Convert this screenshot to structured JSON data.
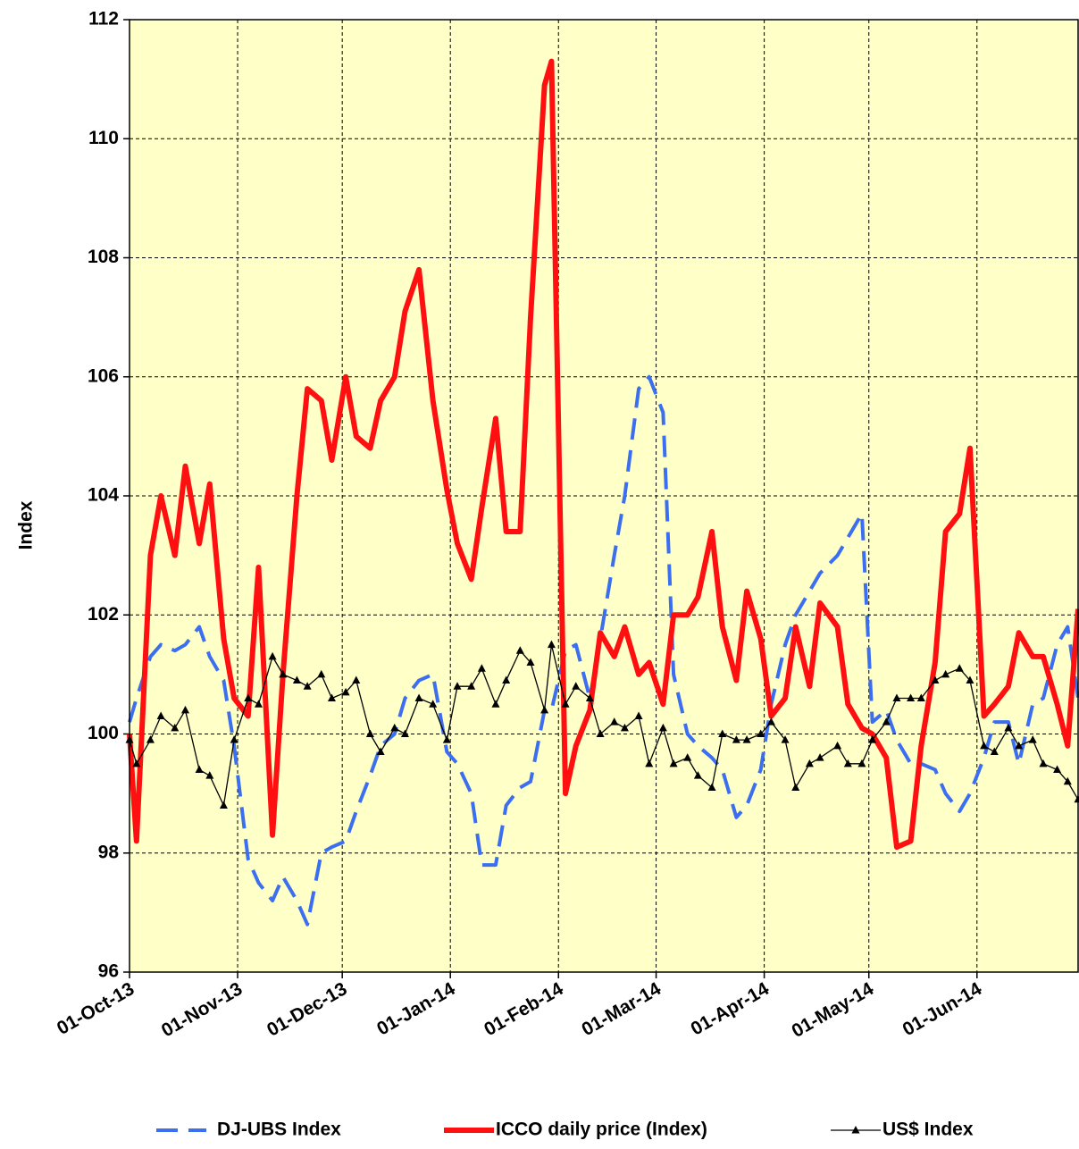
{
  "chart_data": {
    "type": "line",
    "ylabel": "Index",
    "x": [
      "2013-10-01",
      "2013-10-03",
      "2013-10-07",
      "2013-10-10",
      "2013-10-14",
      "2013-10-17",
      "2013-10-21",
      "2013-10-24",
      "2013-10-28",
      "2013-10-31",
      "2013-11-04",
      "2013-11-07",
      "2013-11-11",
      "2013-11-14",
      "2013-11-18",
      "2013-11-21",
      "2013-11-25",
      "2013-11-28",
      "2013-12-02",
      "2013-12-05",
      "2013-12-09",
      "2013-12-12",
      "2013-12-16",
      "2013-12-19",
      "2013-12-23",
      "2013-12-27",
      "2013-12-31",
      "2014-01-03",
      "2014-01-07",
      "2014-01-10",
      "2014-01-14",
      "2014-01-17",
      "2014-01-21",
      "2014-01-24",
      "2014-01-28",
      "2014-01-30",
      "2014-02-03",
      "2014-02-06",
      "2014-02-10",
      "2014-02-13",
      "2014-02-17",
      "2014-02-20",
      "2014-02-24",
      "2014-02-27",
      "2014-03-03",
      "2014-03-06",
      "2014-03-10",
      "2014-03-13",
      "2014-03-17",
      "2014-03-20",
      "2014-03-24",
      "2014-03-27",
      "2014-03-31",
      "2014-04-03",
      "2014-04-07",
      "2014-04-10",
      "2014-04-14",
      "2014-04-17",
      "2014-04-22",
      "2014-04-25",
      "2014-04-29",
      "2014-05-02",
      "2014-05-06",
      "2014-05-09",
      "2014-05-13",
      "2014-05-16",
      "2014-05-20",
      "2014-05-23",
      "2014-05-27",
      "2014-05-30",
      "2014-06-03",
      "2014-06-06",
      "2014-06-10",
      "2014-06-13",
      "2014-06-17",
      "2014-06-20",
      "2014-06-24",
      "2014-06-27",
      "2014-06-30"
    ],
    "series": [
      {
        "name": "DJ-UBS Index",
        "color": "#3b6ff0",
        "dashed": true,
        "line_width": 4,
        "values": [
          100.2,
          100.6,
          101.3,
          101.5,
          101.4,
          101.5,
          101.8,
          101.3,
          100.9,
          99.8,
          97.9,
          97.5,
          97.2,
          97.6,
          97.2,
          96.8,
          98.0,
          98.1,
          98.2,
          98.7,
          99.3,
          99.8,
          100.0,
          100.6,
          100.9,
          101.0,
          99.7,
          99.5,
          99.0,
          97.8,
          97.8,
          98.8,
          99.1,
          99.2,
          100.4,
          100.4,
          101.4,
          101.5,
          100.6,
          101.6,
          103.0,
          104.0,
          105.8,
          106.0,
          105.4,
          101.0,
          100.0,
          99.8,
          99.6,
          99.4,
          98.6,
          98.8,
          99.4,
          100.5,
          101.5,
          102.0,
          102.4,
          102.7,
          103.0,
          103.3,
          103.7,
          100.2,
          100.4,
          99.9,
          99.5,
          99.5,
          99.4,
          99.0,
          98.7,
          99.0,
          99.6,
          100.2,
          100.2,
          99.5,
          100.5,
          100.6,
          101.5,
          101.8,
          100.6
        ]
      },
      {
        "name": "ICCO daily price (Index)",
        "color": "#ff1010",
        "dashed": false,
        "line_width": 6,
        "values": [
          100.0,
          98.2,
          103.0,
          104.0,
          103.0,
          104.5,
          103.2,
          104.2,
          101.6,
          100.6,
          100.3,
          102.8,
          98.3,
          101.0,
          104.0,
          105.8,
          105.6,
          104.6,
          106.0,
          105.0,
          104.8,
          105.6,
          106.0,
          107.1,
          107.8,
          105.6,
          104.1,
          103.2,
          102.6,
          103.8,
          105.3,
          103.4,
          103.4,
          107.0,
          110.9,
          111.3,
          99.0,
          99.8,
          100.4,
          101.7,
          101.3,
          101.8,
          101.0,
          101.2,
          100.5,
          102.0,
          102.0,
          102.3,
          103.4,
          101.8,
          100.9,
          102.4,
          101.6,
          100.3,
          100.6,
          101.8,
          100.8,
          102.2,
          101.8,
          100.5,
          100.1,
          100.0,
          99.6,
          98.1,
          98.2,
          99.8,
          101.2,
          103.4,
          103.7,
          104.8,
          100.3,
          100.5,
          100.8,
          101.7,
          101.3,
          101.3,
          100.5,
          99.8,
          102.1
        ]
      },
      {
        "name": "US$ Index",
        "color": "#000000",
        "dashed": false,
        "line_width": 1.3,
        "marker": "triangle",
        "values": [
          99.9,
          99.5,
          99.9,
          100.3,
          100.1,
          100.4,
          99.4,
          99.3,
          98.8,
          99.9,
          100.6,
          100.5,
          101.3,
          101.0,
          100.9,
          100.8,
          101.0,
          100.6,
          100.7,
          100.9,
          100.0,
          99.7,
          100.1,
          100.0,
          100.6,
          100.5,
          99.9,
          100.8,
          100.8,
          101.1,
          100.5,
          100.9,
          101.4,
          101.2,
          100.4,
          101.5,
          100.5,
          100.8,
          100.6,
          100.0,
          100.2,
          100.1,
          100.3,
          99.5,
          100.1,
          99.5,
          99.6,
          99.3,
          99.1,
          100.0,
          99.9,
          99.9,
          100.0,
          100.2,
          99.9,
          99.1,
          99.5,
          99.6,
          99.8,
          99.5,
          99.5,
          99.9,
          100.2,
          100.6,
          100.6,
          100.6,
          100.9,
          101.0,
          101.1,
          100.9,
          99.8,
          99.7,
          100.1,
          99.8,
          99.9,
          99.5,
          99.4,
          99.2,
          98.9
        ]
      }
    ],
    "xlim": [
      "2013-10-01",
      "2014-06-30"
    ],
    "xticks": [
      {
        "value": "2013-10-01",
        "label": "01-Oct-13"
      },
      {
        "value": "2013-11-01",
        "label": "01-Nov-13"
      },
      {
        "value": "2013-12-01",
        "label": "01-Dec-13"
      },
      {
        "value": "2014-01-01",
        "label": "01-Jan-14"
      },
      {
        "value": "2014-02-01",
        "label": "01-Feb-14"
      },
      {
        "value": "2014-03-01",
        "label": "01-Mar-14"
      },
      {
        "value": "2014-04-01",
        "label": "01-Apr-14"
      },
      {
        "value": "2014-05-01",
        "label": "01-May-14"
      },
      {
        "value": "2014-06-01",
        "label": "01-Jun-14"
      }
    ],
    "ylim": [
      96,
      112
    ],
    "yticks": [
      96,
      98,
      100,
      102,
      104,
      106,
      108,
      110,
      112
    ],
    "grid": true,
    "background": "#ffffc8",
    "legend": "bottom"
  }
}
